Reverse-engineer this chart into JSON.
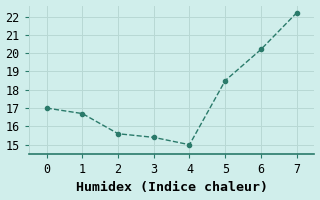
{
  "x": [
    0,
    1,
    2,
    3,
    4,
    5,
    6,
    7
  ],
  "y": [
    17.0,
    16.7,
    15.6,
    15.4,
    15.0,
    18.5,
    20.2,
    22.2
  ],
  "line_color": "#2a7a6a",
  "marker": "o",
  "marker_size": 3,
  "xlabel": "Humidex (Indice chaleur)",
  "xlim": [
    -0.5,
    7.5
  ],
  "ylim": [
    14.5,
    22.6
  ],
  "yticks": [
    15,
    16,
    17,
    18,
    19,
    20,
    21,
    22
  ],
  "xticks": [
    0,
    1,
    2,
    3,
    4,
    5,
    6,
    7
  ],
  "bg_color": "#d0eeeb",
  "grid_color": "#b8d8d4",
  "axis_color": "#2a7a6a",
  "line_style": "--",
  "tick_fontsize": 8.5,
  "xlabel_fontsize": 9.5,
  "linewidth": 1.0
}
